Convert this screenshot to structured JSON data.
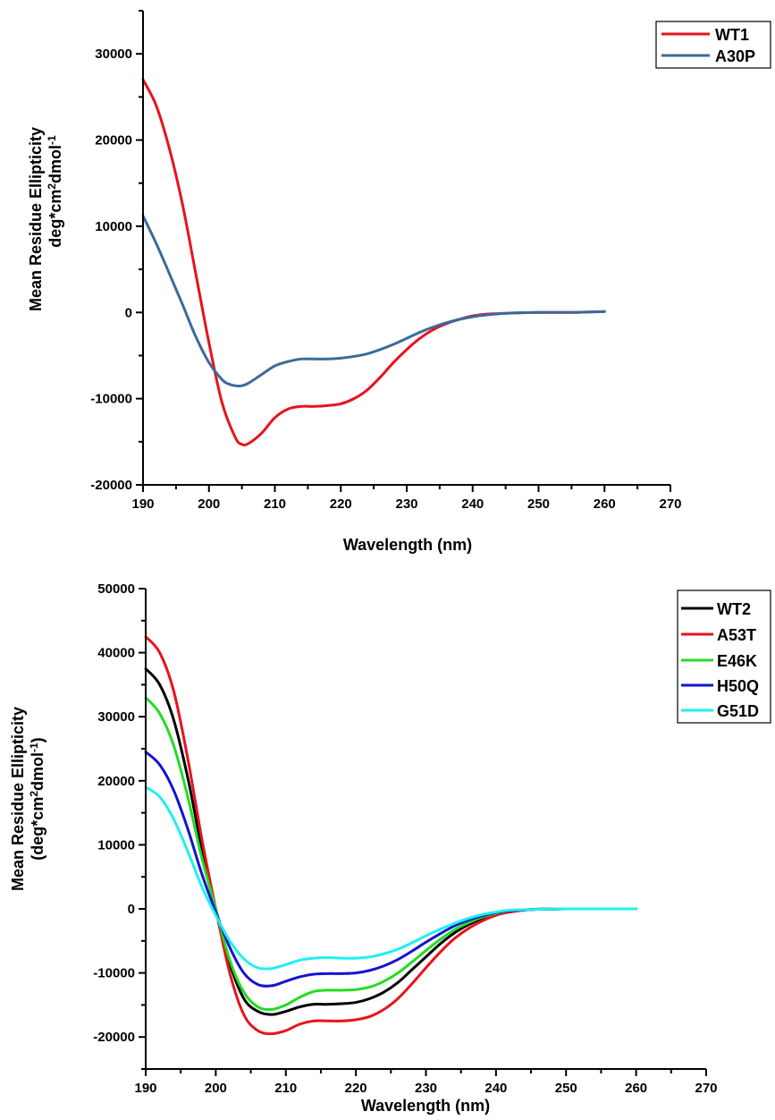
{
  "chart_data": [
    {
      "type": "line",
      "xlabel": "Wavelength (nm)",
      "ylabel_line1": "Mean Residue Ellipticity",
      "ylabel_line2_main": "deg*cm",
      "ylabel_sup1": "2",
      "ylabel_line2_mid": "dmol",
      "ylabel_sup2": "-1",
      "ylabel_line2_end": "",
      "xlim": [
        190,
        270
      ],
      "ylim": [
        -20000,
        35000
      ],
      "xticks": [
        190,
        200,
        210,
        220,
        230,
        240,
        250,
        260,
        270
      ],
      "yticks": [
        -20000,
        -10000,
        0,
        10000,
        20000,
        30000
      ],
      "grid": false,
      "legend_position": "top-right",
      "series": [
        {
          "name": "WT1",
          "color": "#e8121b",
          "x": [
            190,
            192,
            194,
            196,
            198,
            200,
            202,
            204,
            205,
            206,
            208,
            210,
            212,
            214,
            216,
            218,
            220,
            222,
            224,
            226,
            228,
            230,
            232,
            234,
            236,
            238,
            240,
            242,
            245,
            250,
            255,
            260
          ],
          "y": [
            27000,
            24000,
            19000,
            12500,
            4500,
            -3500,
            -10500,
            -14500,
            -15300,
            -15200,
            -14000,
            -12200,
            -11200,
            -10900,
            -10900,
            -10800,
            -10600,
            -10000,
            -9000,
            -7500,
            -5800,
            -4300,
            -3000,
            -2000,
            -1300,
            -800,
            -400,
            -200,
            -100,
            0,
            0,
            100
          ]
        },
        {
          "name": "A30P",
          "color": "#3c6a9a",
          "x": [
            190,
            192,
            194,
            196,
            198,
            200,
            202,
            203,
            204,
            205,
            206,
            208,
            210,
            212,
            214,
            216,
            218,
            220,
            222,
            224,
            226,
            228,
            230,
            232,
            234,
            236,
            238,
            240,
            242,
            245,
            250,
            255,
            260
          ],
          "y": [
            11200,
            8000,
            4500,
            900,
            -2800,
            -5800,
            -7800,
            -8300,
            -8500,
            -8500,
            -8200,
            -7200,
            -6200,
            -5700,
            -5400,
            -5400,
            -5400,
            -5300,
            -5100,
            -4800,
            -4300,
            -3700,
            -3000,
            -2300,
            -1700,
            -1200,
            -800,
            -500,
            -300,
            -100,
            0,
            0,
            100
          ]
        }
      ]
    },
    {
      "type": "line",
      "xlabel": "Wavelength (nm)",
      "ylabel_line1": "Mean Residue Ellipticity",
      "ylabel_line2_main": "(deg*cm",
      "ylabel_sup1": "2",
      "ylabel_line2_mid": "dmol",
      "ylabel_sup2": "-1",
      "ylabel_line2_end": ")",
      "xlim": [
        190,
        270
      ],
      "ylim": [
        -25000,
        50000
      ],
      "xticks": [
        190,
        200,
        210,
        220,
        230,
        240,
        250,
        260,
        270
      ],
      "yticks": [
        -20000,
        -10000,
        0,
        10000,
        20000,
        30000,
        40000,
        50000
      ],
      "grid": false,
      "legend_position": "top-right",
      "series": [
        {
          "name": "WT2",
          "color": "#000000",
          "x": [
            190,
            192,
            194,
            196,
            198,
            200,
            202,
            204,
            206,
            208,
            210,
            212,
            214,
            216,
            218,
            220,
            222,
            224,
            226,
            228,
            230,
            232,
            234,
            236,
            238,
            240,
            242,
            245,
            250,
            255,
            260
          ],
          "y": [
            37500,
            35000,
            29500,
            20500,
            9500,
            0,
            -8500,
            -14000,
            -16000,
            -16500,
            -16000,
            -15300,
            -14900,
            -14900,
            -14800,
            -14600,
            -14000,
            -13000,
            -11500,
            -9500,
            -7500,
            -5500,
            -3800,
            -2500,
            -1500,
            -800,
            -400,
            -100,
            0,
            0,
            0
          ]
        },
        {
          "name": "A53T",
          "color": "#e8121b",
          "x": [
            190,
            192,
            194,
            196,
            198,
            200,
            202,
            204,
            206,
            208,
            210,
            212,
            214,
            216,
            218,
            220,
            222,
            224,
            226,
            228,
            230,
            232,
            234,
            236,
            238,
            240,
            242,
            245,
            250,
            255,
            260
          ],
          "y": [
            42500,
            40000,
            34000,
            23500,
            11000,
            0,
            -10000,
            -16500,
            -19000,
            -19500,
            -19000,
            -18000,
            -17500,
            -17500,
            -17500,
            -17300,
            -16800,
            -15700,
            -14000,
            -11700,
            -9200,
            -6800,
            -4700,
            -3100,
            -1900,
            -1000,
            -500,
            -100,
            0,
            0,
            0
          ]
        },
        {
          "name": "E46K",
          "color": "#22dd22",
          "x": [
            190,
            192,
            194,
            196,
            198,
            200,
            202,
            204,
            206,
            208,
            210,
            212,
            214,
            216,
            218,
            220,
            222,
            224,
            226,
            228,
            230,
            232,
            234,
            236,
            238,
            240,
            242,
            245,
            250,
            255,
            260
          ],
          "y": [
            33000,
            30500,
            25500,
            17500,
            8000,
            0,
            -8000,
            -13000,
            -15300,
            -15700,
            -15000,
            -13800,
            -12900,
            -12700,
            -12700,
            -12600,
            -12200,
            -11300,
            -10000,
            -8300,
            -6500,
            -4800,
            -3300,
            -2200,
            -1300,
            -700,
            -300,
            -100,
            0,
            0,
            0
          ]
        },
        {
          "name": "H50Q",
          "color": "#1414d2",
          "x": [
            190,
            192,
            194,
            196,
            198,
            200,
            202,
            204,
            206,
            208,
            210,
            212,
            214,
            216,
            218,
            220,
            222,
            224,
            226,
            228,
            230,
            232,
            234,
            236,
            238,
            240,
            242,
            245,
            250,
            255,
            260
          ],
          "y": [
            24500,
            22500,
            18500,
            12500,
            5500,
            -500,
            -6000,
            -10000,
            -11800,
            -12000,
            -11300,
            -10600,
            -10200,
            -10100,
            -10100,
            -10000,
            -9600,
            -8900,
            -7900,
            -6600,
            -5200,
            -3900,
            -2700,
            -1800,
            -1100,
            -600,
            -300,
            -100,
            0,
            0,
            0
          ]
        },
        {
          "name": "G51D",
          "color": "#1ff0f0",
          "x": [
            190,
            192,
            194,
            196,
            198,
            200,
            202,
            204,
            206,
            208,
            210,
            212,
            214,
            216,
            218,
            220,
            222,
            224,
            226,
            228,
            230,
            232,
            234,
            236,
            238,
            240,
            242,
            245,
            250,
            255,
            260
          ],
          "y": [
            19000,
            17500,
            14000,
            9000,
            3500,
            -1000,
            -5000,
            -7800,
            -9200,
            -9300,
            -8700,
            -8000,
            -7700,
            -7600,
            -7700,
            -7700,
            -7500,
            -7000,
            -6300,
            -5300,
            -4200,
            -3200,
            -2300,
            -1500,
            -900,
            -500,
            -200,
            -100,
            0,
            0,
            0
          ]
        }
      ]
    }
  ]
}
